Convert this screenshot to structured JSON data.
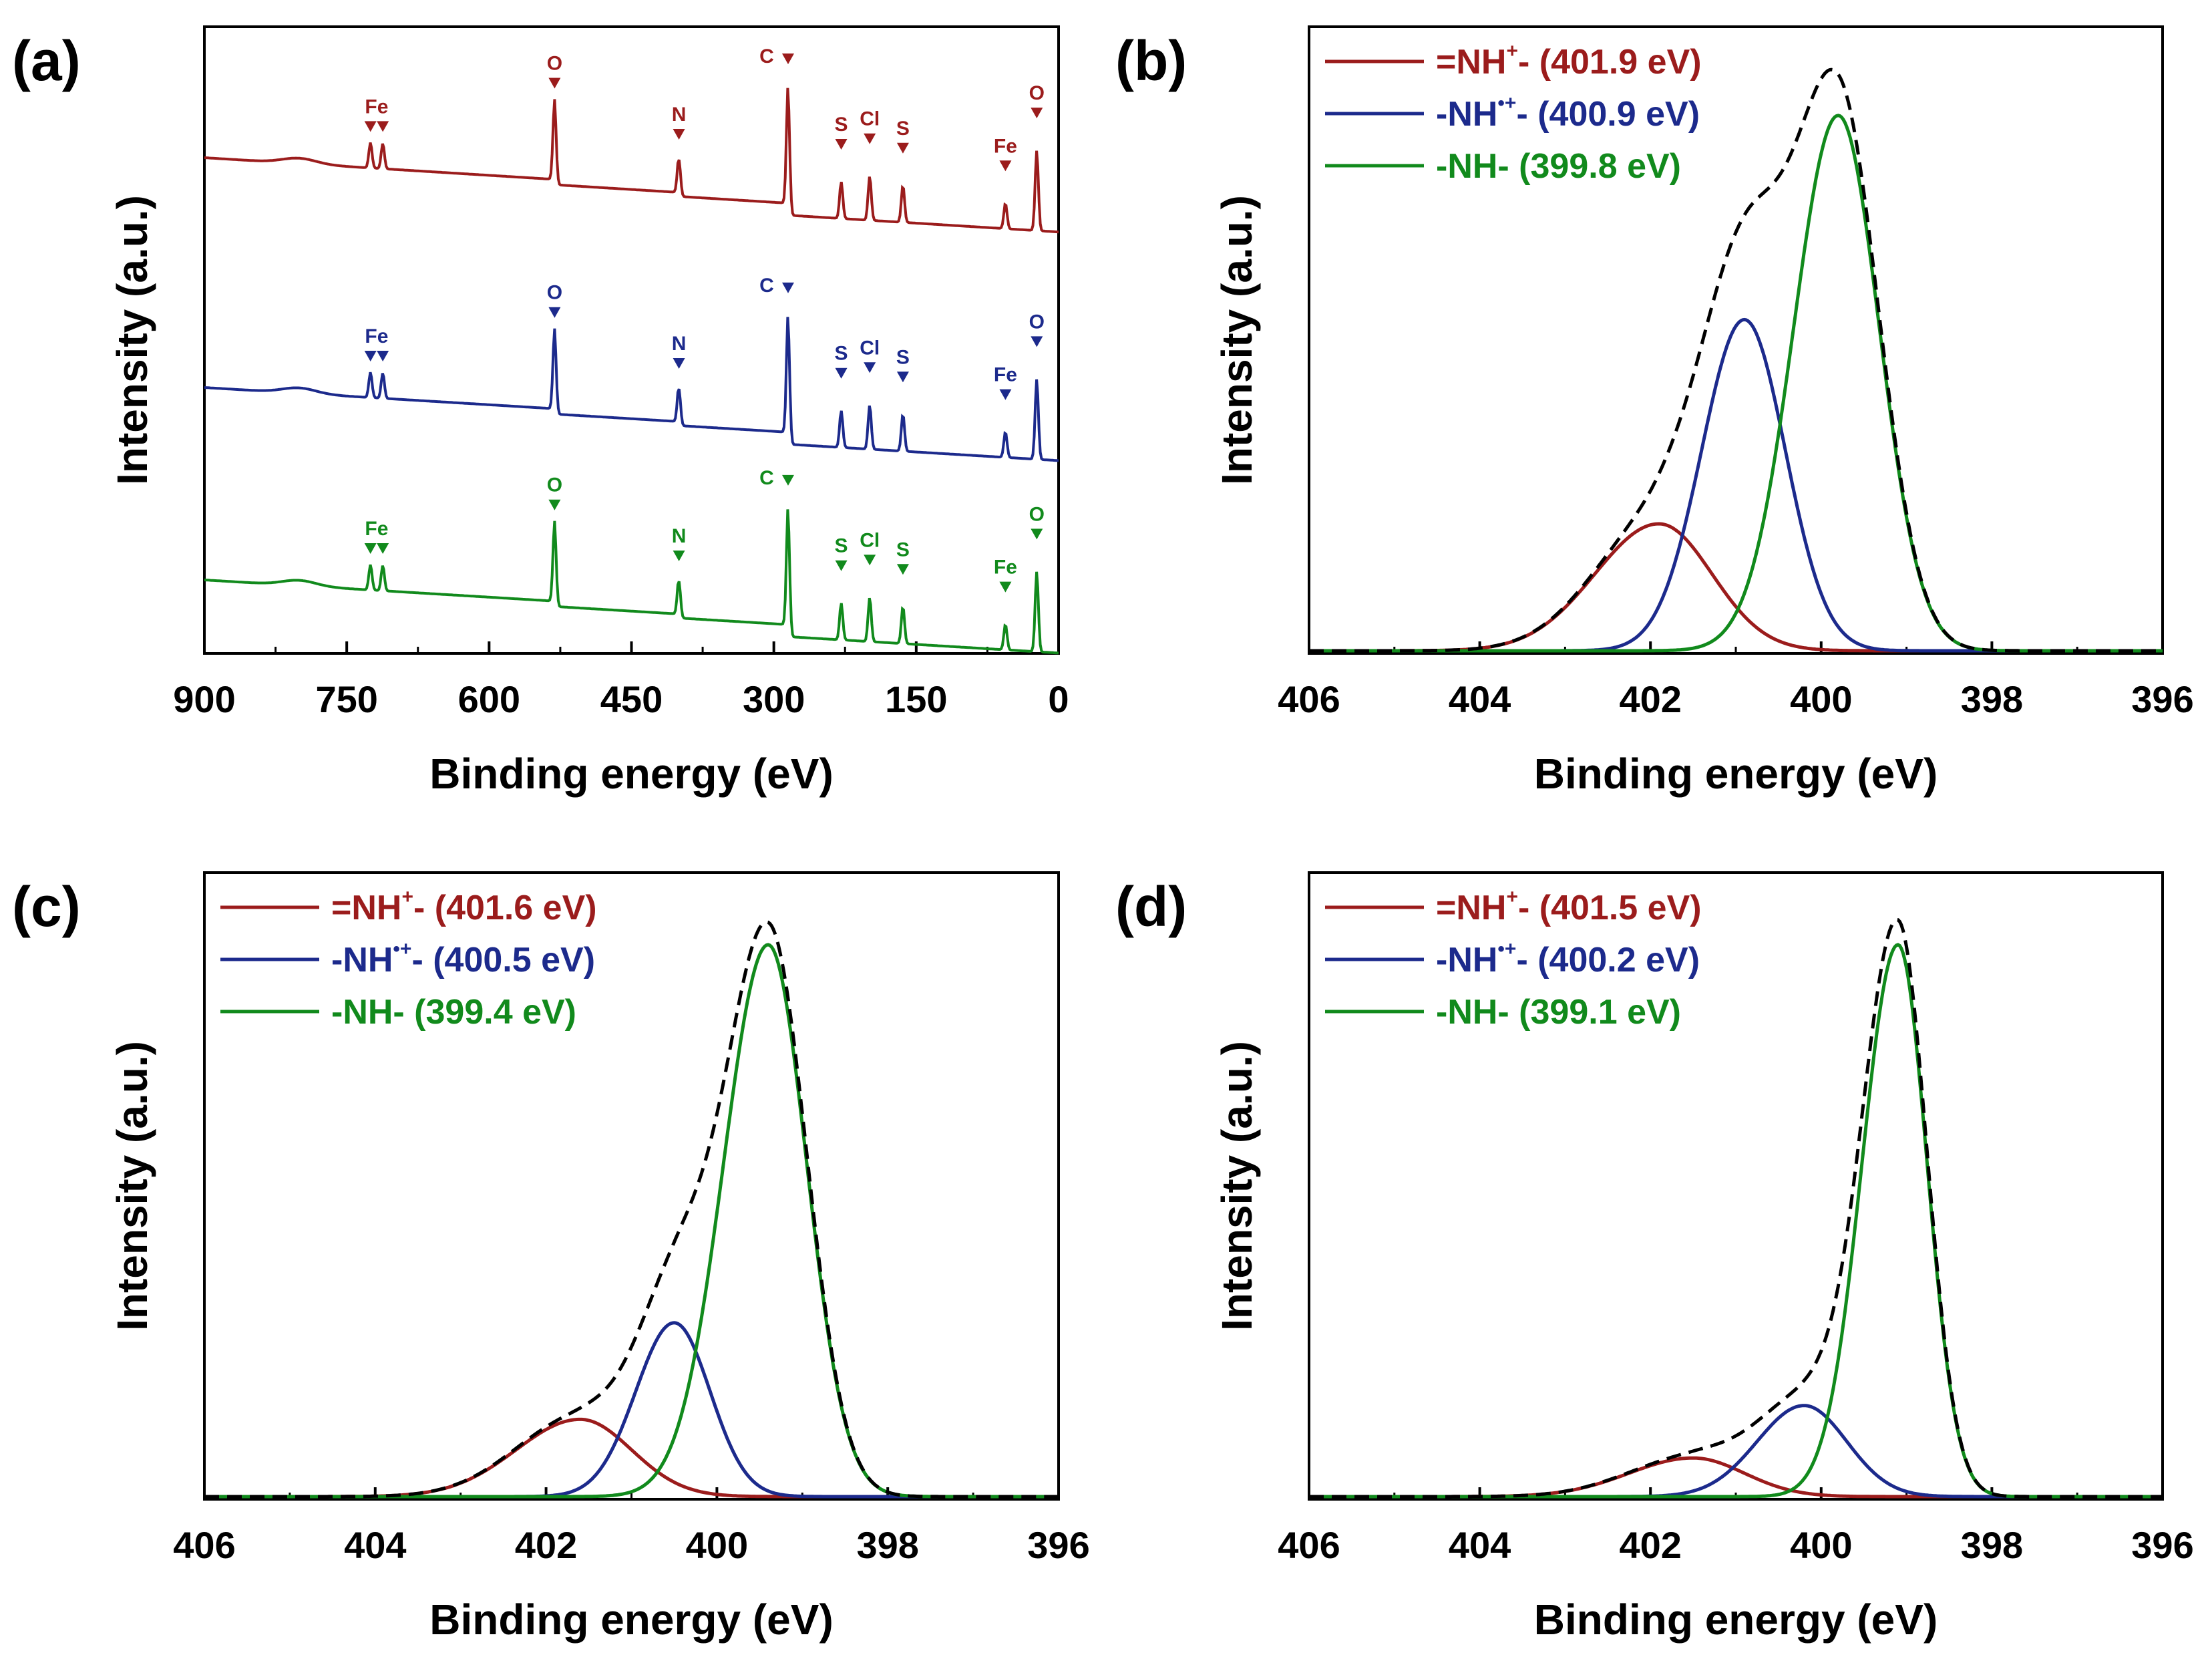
{
  "colors": {
    "red": "#9b1c1c",
    "blue": "#1c2a8c",
    "green": "#118a1c",
    "envelope": "#000000"
  },
  "chart_data": [
    {
      "id": "a",
      "panel_label": "(a)",
      "type": "line",
      "title": "",
      "xlabel": "Binding energy (eV)",
      "ylabel": "Intensity (a.u.)",
      "xlim": [
        900,
        0
      ],
      "xticks": [
        900,
        750,
        600,
        450,
        300,
        150,
        0
      ],
      "grid": false,
      "series": [
        {
          "name": "top",
          "color_key": "red"
        },
        {
          "name": "middle",
          "color_key": "blue"
        },
        {
          "name": "bottom",
          "color_key": "green"
        }
      ],
      "peaks": [
        {
          "label": "Fe",
          "x": [
            725,
            712
          ]
        },
        {
          "label": "O",
          "x": [
            531
          ]
        },
        {
          "label": "N",
          "x": [
            400
          ]
        },
        {
          "label": "C",
          "x": [
            285
          ]
        },
        {
          "label": "S",
          "x": [
            229
          ]
        },
        {
          "label": "Cl",
          "x": [
            199
          ]
        },
        {
          "label": "S",
          "x": [
            164
          ]
        },
        {
          "label": "Fe",
          "x": [
            56
          ]
        },
        {
          "label": "O",
          "x": [
            23
          ]
        }
      ]
    },
    {
      "id": "b",
      "panel_label": "(b)",
      "type": "line",
      "xlabel": "Binding energy (eV)",
      "ylabel": "Intensity (a.u.)",
      "xlim": [
        406,
        396
      ],
      "xticks": [
        406,
        404,
        402,
        400,
        398,
        396
      ],
      "grid": false,
      "legend": "top-left",
      "series": [
        {
          "name": "=NH⁺- (401.9 eV)",
          "label_main": "=NH",
          "label_sup": "+",
          "label_rest": "- (401.9 eV)",
          "color_key": "red",
          "center": 401.9,
          "amplitude": 0.23,
          "sigma_left": 0.75,
          "sigma_right": 0.62
        },
        {
          "name": "-NH•+- (400.9 eV)",
          "label_main": "-NH",
          "label_sup": "•+",
          "label_rest": "- (400.9 eV)",
          "color_key": "blue",
          "center": 400.9,
          "amplitude": 0.6,
          "sigma_left": 0.5,
          "sigma_right": 0.48
        },
        {
          "name": "-NH- (399.8 eV)",
          "label_main": "-NH- (399.8 eV)",
          "label_sup": "",
          "label_rest": "",
          "color_key": "green",
          "center": 399.8,
          "amplitude": 0.97,
          "sigma_left": 0.52,
          "sigma_right": 0.48
        }
      ]
    },
    {
      "id": "c",
      "panel_label": "(c)",
      "type": "line",
      "xlabel": "Binding energy (eV)",
      "ylabel": "Intensity (a.u.)",
      "xlim": [
        406,
        396
      ],
      "xticks": [
        406,
        404,
        402,
        400,
        398,
        396
      ],
      "grid": false,
      "legend": "top-left",
      "series": [
        {
          "name": "=NH⁺- (401.6 eV)",
          "label_main": "=NH",
          "label_sup": "+",
          "label_rest": "- (401.6 eV)",
          "color_key": "red",
          "center": 401.6,
          "amplitude": 0.14,
          "sigma_left": 0.75,
          "sigma_right": 0.6
        },
        {
          "name": "-NH•+- (400.5 eV)",
          "label_main": "-NH",
          "label_sup": "•+",
          "label_rest": "- (400.5 eV)",
          "color_key": "blue",
          "center": 400.5,
          "amplitude": 0.315,
          "sigma_left": 0.45,
          "sigma_right": 0.42
        },
        {
          "name": "-NH- (399.4 eV)",
          "label_main": "-NH- (399.4 eV)",
          "label_sup": "",
          "label_rest": "",
          "color_key": "green",
          "center": 399.4,
          "amplitude": 1.0,
          "sigma_left": 0.52,
          "sigma_right": 0.45
        }
      ]
    },
    {
      "id": "d",
      "panel_label": "(d)",
      "type": "line",
      "xlabel": "Binding energy (eV)",
      "ylabel": "Intensity (a.u.)",
      "xlim": [
        406,
        396
      ],
      "xticks": [
        406,
        404,
        402,
        400,
        398,
        396
      ],
      "grid": false,
      "legend": "top-left",
      "series": [
        {
          "name": "=NH⁺- (401.5 eV)",
          "label_main": "=NH",
          "label_sup": "+",
          "label_rest": "- (401.5 eV)",
          "color_key": "red",
          "center": 401.5,
          "amplitude": 0.07,
          "sigma_left": 0.75,
          "sigma_right": 0.6
        },
        {
          "name": "-NH•+- (400.2 eV)",
          "label_main": "-NH",
          "label_sup": "•+",
          "label_rest": "- (400.2 eV)",
          "color_key": "blue",
          "center": 400.2,
          "amplitude": 0.165,
          "sigma_left": 0.55,
          "sigma_right": 0.5
        },
        {
          "name": "-NH- (399.1 eV)",
          "label_main": "-NH- (399.1 eV)",
          "label_sup": "",
          "label_rest": "",
          "color_key": "green",
          "center": 399.1,
          "amplitude": 1.0,
          "sigma_left": 0.42,
          "sigma_right": 0.34
        }
      ]
    }
  ]
}
